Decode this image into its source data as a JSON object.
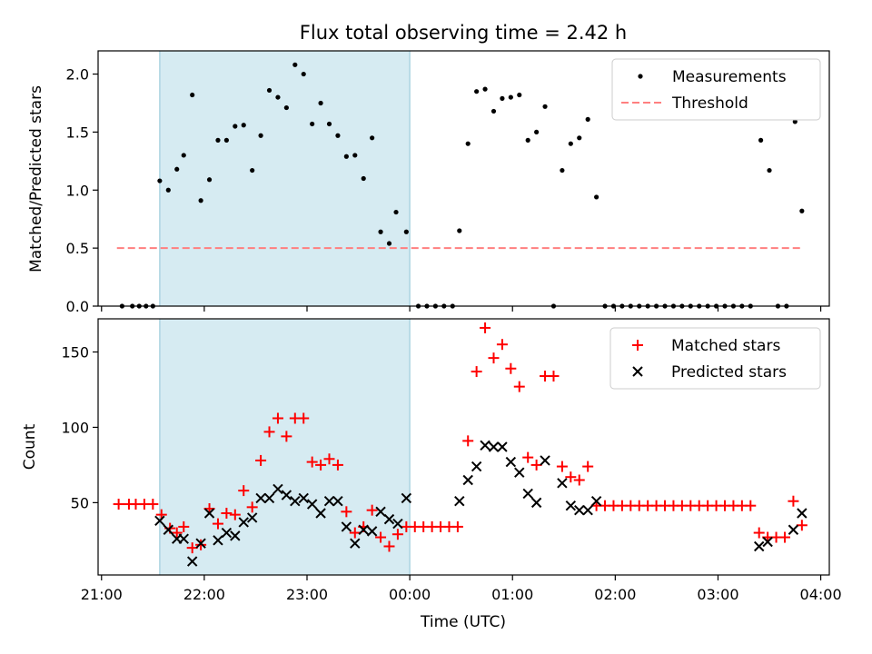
{
  "figure": {
    "title": "Flux total observing time = 2.42 h",
    "shaded_region": {
      "start": "21:34",
      "end": "00:00",
      "color": "#add8e6"
    }
  },
  "colors": {
    "measurement": "#000000",
    "threshold": "#ff7f7f",
    "matched": "#ff0000",
    "predicted": "#000000"
  },
  "chart_data": [
    {
      "type": "scatter",
      "panel": "top",
      "title": "Flux total observing time = 2.42 h",
      "xlabel": "",
      "ylabel": "Matched/Predicted stars",
      "xlim": [
        "20:58",
        "04:05"
      ],
      "ylim": [
        0,
        2.2
      ],
      "yticks": [
        0.0,
        0.5,
        1.0,
        1.5,
        2.0
      ],
      "ytick_labels": [
        "0.0",
        "0.5",
        "1.0",
        "1.5",
        "2.0"
      ],
      "legend_position": "top-right",
      "legend": [
        "Measurements",
        "Threshold"
      ],
      "series": [
        {
          "name": "Measurements",
          "marker": "dot",
          "points": [
            [
              "21:12",
              0
            ],
            [
              "21:18",
              0
            ],
            [
              "21:22",
              0
            ],
            [
              "21:26",
              0
            ],
            [
              "21:30",
              0
            ],
            [
              "21:34",
              1.08
            ],
            [
              "21:39",
              1.0
            ],
            [
              "21:44",
              1.18
            ],
            [
              "21:48",
              1.3
            ],
            [
              "21:53",
              1.82
            ],
            [
              "21:58",
              0.91
            ],
            [
              "22:03",
              1.09
            ],
            [
              "22:08",
              1.43
            ],
            [
              "22:13",
              1.43
            ],
            [
              "22:18",
              1.55
            ],
            [
              "22:23",
              1.56
            ],
            [
              "22:28",
              1.17
            ],
            [
              "22:33",
              1.47
            ],
            [
              "22:38",
              1.86
            ],
            [
              "22:43",
              1.8
            ],
            [
              "22:48",
              1.71
            ],
            [
              "22:53",
              2.08
            ],
            [
              "22:58",
              2.0
            ],
            [
              "23:03",
              1.57
            ],
            [
              "23:08",
              1.75
            ],
            [
              "23:13",
              1.57
            ],
            [
              "23:18",
              1.47
            ],
            [
              "23:23",
              1.29
            ],
            [
              "23:28",
              1.3
            ],
            [
              "23:33",
              1.1
            ],
            [
              "23:38",
              1.45
            ],
            [
              "23:43",
              0.64
            ],
            [
              "23:48",
              0.54
            ],
            [
              "23:52",
              0.81
            ],
            [
              "23:58",
              0.64
            ],
            [
              "00:05",
              0
            ],
            [
              "00:10",
              0
            ],
            [
              "00:15",
              0
            ],
            [
              "00:20",
              0
            ],
            [
              "00:25",
              0
            ],
            [
              "00:29",
              0.65
            ],
            [
              "00:34",
              1.4
            ],
            [
              "00:39",
              1.85
            ],
            [
              "00:44",
              1.87
            ],
            [
              "00:49",
              1.68
            ],
            [
              "00:54",
              1.79
            ],
            [
              "00:59",
              1.8
            ],
            [
              "01:04",
              1.82
            ],
            [
              "01:09",
              1.43
            ],
            [
              "01:14",
              1.5
            ],
            [
              "01:19",
              1.72
            ],
            [
              "01:24",
              0
            ],
            [
              "01:29",
              1.17
            ],
            [
              "01:34",
              1.4
            ],
            [
              "01:39",
              1.45
            ],
            [
              "01:44",
              1.61
            ],
            [
              "01:49",
              0.94
            ],
            [
              "01:54",
              0
            ],
            [
              "01:59",
              0
            ],
            [
              "02:04",
              0
            ],
            [
              "02:09",
              0
            ],
            [
              "02:14",
              0
            ],
            [
              "02:19",
              0
            ],
            [
              "02:24",
              0
            ],
            [
              "02:29",
              0
            ],
            [
              "02:34",
              0
            ],
            [
              "02:39",
              0
            ],
            [
              "02:44",
              0
            ],
            [
              "02:49",
              0
            ],
            [
              "02:54",
              0
            ],
            [
              "02:59",
              0
            ],
            [
              "03:04",
              0
            ],
            [
              "03:09",
              0
            ],
            [
              "03:14",
              0
            ],
            [
              "03:19",
              0
            ],
            [
              "03:25",
              1.43
            ],
            [
              "03:30",
              1.17
            ],
            [
              "03:35",
              0
            ],
            [
              "03:40",
              0
            ],
            [
              "03:45",
              1.59
            ],
            [
              "03:49",
              0.82
            ]
          ]
        },
        {
          "name": "Threshold",
          "style": "dashed",
          "points": [
            [
              "21:09",
              0.5
            ],
            [
              "03:48",
              0.5
            ]
          ]
        }
      ]
    },
    {
      "type": "scatter",
      "panel": "bottom",
      "xlabel": "Time (UTC)",
      "ylabel": "Count",
      "xlim": [
        "20:58",
        "04:05"
      ],
      "ylim": [
        2,
        172
      ],
      "yticks": [
        50,
        100,
        150
      ],
      "ytick_labels": [
        "50",
        "100",
        "150"
      ],
      "xticks": [
        "21:00",
        "22:00",
        "23:00",
        "00:00",
        "01:00",
        "02:00",
        "03:00",
        "04:00"
      ],
      "legend_position": "top-right",
      "legend": [
        "Matched stars",
        "Predicted stars"
      ],
      "series": [
        {
          "name": "Matched stars",
          "marker": "plus",
          "points": [
            [
              "21:10",
              49
            ],
            [
              "21:16",
              49
            ],
            [
              "21:20",
              49
            ],
            [
              "21:25",
              49
            ],
            [
              "21:30",
              49
            ],
            [
              "21:35",
              42
            ],
            [
              "21:40",
              33
            ],
            [
              "21:44",
              30
            ],
            [
              "21:48",
              34
            ],
            [
              "21:53",
              20
            ],
            [
              "21:58",
              22
            ],
            [
              "22:03",
              46
            ],
            [
              "22:08",
              36
            ],
            [
              "22:13",
              43
            ],
            [
              "22:18",
              42
            ],
            [
              "22:23",
              58
            ],
            [
              "22:28",
              47
            ],
            [
              "22:33",
              78
            ],
            [
              "22:38",
              97
            ],
            [
              "22:43",
              106
            ],
            [
              "22:48",
              94
            ],
            [
              "22:53",
              106
            ],
            [
              "22:58",
              106
            ],
            [
              "23:03",
              77
            ],
            [
              "23:08",
              75
            ],
            [
              "23:13",
              79
            ],
            [
              "23:18",
              75
            ],
            [
              "23:23",
              44
            ],
            [
              "23:28",
              30
            ],
            [
              "23:33",
              34
            ],
            [
              "23:38",
              45
            ],
            [
              "23:43",
              27
            ],
            [
              "23:48",
              21
            ],
            [
              "23:53",
              29
            ],
            [
              "23:58",
              34
            ],
            [
              "00:03",
              34
            ],
            [
              "00:08",
              34
            ],
            [
              "00:13",
              34
            ],
            [
              "00:18",
              34
            ],
            [
              "00:23",
              34
            ],
            [
              "00:28",
              34
            ],
            [
              "00:34",
              91
            ],
            [
              "00:39",
              137
            ],
            [
              "00:44",
              166
            ],
            [
              "00:49",
              146
            ],
            [
              "00:54",
              155
            ],
            [
              "00:59",
              139
            ],
            [
              "01:04",
              127
            ],
            [
              "01:09",
              80
            ],
            [
              "01:14",
              75
            ],
            [
              "01:19",
              134
            ],
            [
              "01:24",
              134
            ],
            [
              "01:29",
              74
            ],
            [
              "01:34",
              67
            ],
            [
              "01:39",
              65
            ],
            [
              "01:44",
              74
            ],
            [
              "01:49",
              48
            ],
            [
              "01:54",
              48
            ],
            [
              "01:59",
              48
            ],
            [
              "02:04",
              48
            ],
            [
              "02:09",
              48
            ],
            [
              "02:14",
              48
            ],
            [
              "02:19",
              48
            ],
            [
              "02:24",
              48
            ],
            [
              "02:29",
              48
            ],
            [
              "02:34",
              48
            ],
            [
              "02:39",
              48
            ],
            [
              "02:44",
              48
            ],
            [
              "02:49",
              48
            ],
            [
              "02:54",
              48
            ],
            [
              "02:59",
              48
            ],
            [
              "03:04",
              48
            ],
            [
              "03:09",
              48
            ],
            [
              "03:14",
              48
            ],
            [
              "03:19",
              48
            ],
            [
              "03:24",
              30
            ],
            [
              "03:29",
              27
            ],
            [
              "03:34",
              27
            ],
            [
              "03:39",
              27
            ],
            [
              "03:44",
              51
            ],
            [
              "03:49",
              35
            ]
          ]
        },
        {
          "name": "Predicted stars",
          "marker": "x",
          "points": [
            [
              "21:34",
              38
            ],
            [
              "21:39",
              32
            ],
            [
              "21:44",
              26
            ],
            [
              "21:48",
              26
            ],
            [
              "21:53",
              11
            ],
            [
              "21:58",
              23
            ],
            [
              "22:03",
              43
            ],
            [
              "22:08",
              25
            ],
            [
              "22:13",
              30
            ],
            [
              "22:18",
              28
            ],
            [
              "22:23",
              37
            ],
            [
              "22:28",
              40
            ],
            [
              "22:33",
              53
            ],
            [
              "22:38",
              53
            ],
            [
              "22:43",
              59
            ],
            [
              "22:48",
              55
            ],
            [
              "22:53",
              51
            ],
            [
              "22:58",
              53
            ],
            [
              "23:03",
              49
            ],
            [
              "23:08",
              43
            ],
            [
              "23:13",
              51
            ],
            [
              "23:18",
              51
            ],
            [
              "23:23",
              34
            ],
            [
              "23:28",
              23
            ],
            [
              "23:33",
              32
            ],
            [
              "23:38",
              31
            ],
            [
              "23:43",
              44
            ],
            [
              "23:48",
              39
            ],
            [
              "23:53",
              36
            ],
            [
              "23:58",
              53
            ],
            [
              "00:29",
              51
            ],
            [
              "00:34",
              65
            ],
            [
              "00:39",
              74
            ],
            [
              "00:44",
              88
            ],
            [
              "00:49",
              87
            ],
            [
              "00:54",
              87
            ],
            [
              "00:59",
              77
            ],
            [
              "01:04",
              70
            ],
            [
              "01:09",
              56
            ],
            [
              "01:14",
              50
            ],
            [
              "01:19",
              78
            ],
            [
              "01:29",
              63
            ],
            [
              "01:34",
              48
            ],
            [
              "01:39",
              45
            ],
            [
              "01:44",
              45
            ],
            [
              "01:49",
              51
            ],
            [
              "03:24",
              21
            ],
            [
              "03:29",
              24
            ],
            [
              "03:44",
              32
            ],
            [
              "03:49",
              43
            ]
          ]
        }
      ]
    }
  ]
}
